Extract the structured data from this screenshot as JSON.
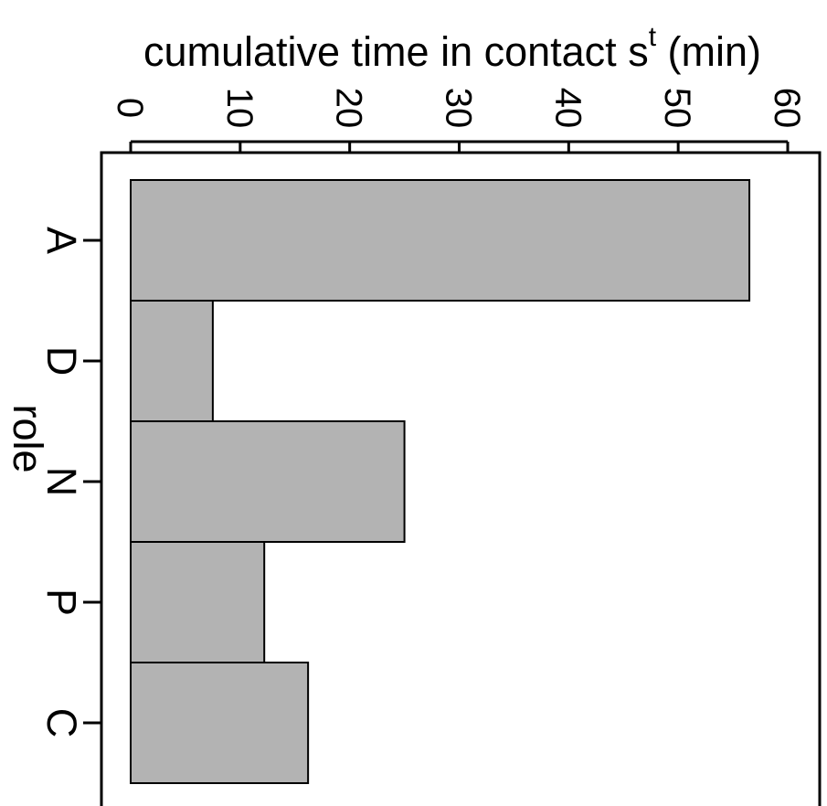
{
  "chart_data": {
    "type": "bar",
    "orientation": "horizontal",
    "categories": [
      "A",
      "D",
      "N",
      "P",
      "C"
    ],
    "values": [
      56.5,
      7.5,
      25.0,
      12.2,
      16.2
    ],
    "xlabel_main": "cumulative time in contact  s",
    "xlabel_sup": "t",
    "xlabel_unit": " (min)",
    "ylabel": "role",
    "xlim": [
      0,
      60
    ],
    "xticks": [
      0,
      10,
      20,
      30,
      40,
      50,
      60
    ],
    "grid": false,
    "legend": "none",
    "bar_color": "#b3b3b3",
    "edge_color": "#000000"
  }
}
